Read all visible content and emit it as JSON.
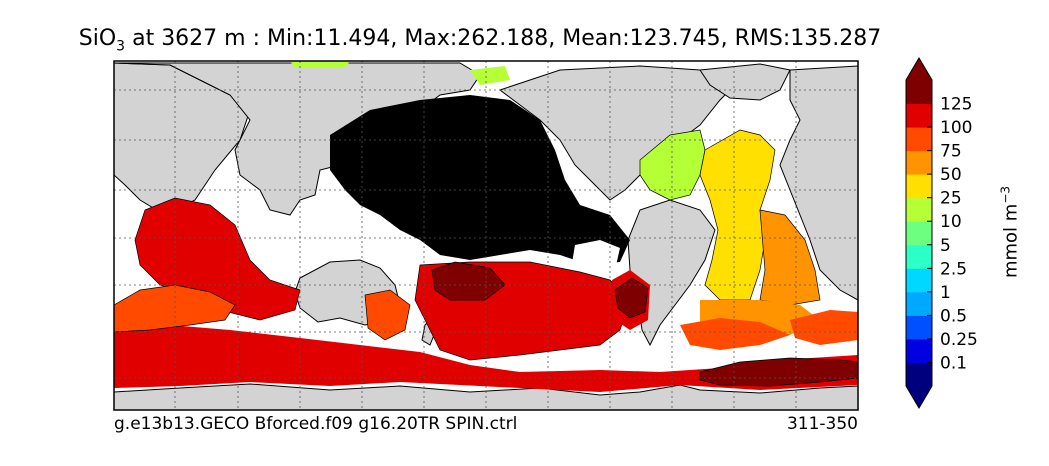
{
  "title": {
    "variable": "SiO",
    "subscript": "3",
    "rest": " at 3627 m : Min:11.494, Max:262.188, Mean:123.745, RMS:135.287"
  },
  "footer": {
    "case_name": "g.e13b13.GECO Bforced.f09 g16.20TR SPIN.ctrl",
    "years": "311-350"
  },
  "colorbar": {
    "units_base": "mmol m",
    "units_exp": "−3",
    "levels": [
      "0.1",
      "0.25",
      "0.5",
      "1",
      "2.5",
      "5",
      "10",
      "25",
      "50",
      "75",
      "100",
      "125"
    ],
    "colors": [
      "#00007f",
      "#0000e0",
      "#0050ff",
      "#00a8ff",
      "#00d8ff",
      "#2cffc8",
      "#6cff80",
      "#b4ff36",
      "#ffe000",
      "#ff9400",
      "#ff4a00",
      "#e00000",
      "#7f0000"
    ],
    "extend": "both"
  },
  "map": {
    "land_color": "#d3d3d3",
    "masked_color": "#ffffff",
    "deep_pacific_color": "#000000",
    "grid": true
  }
}
